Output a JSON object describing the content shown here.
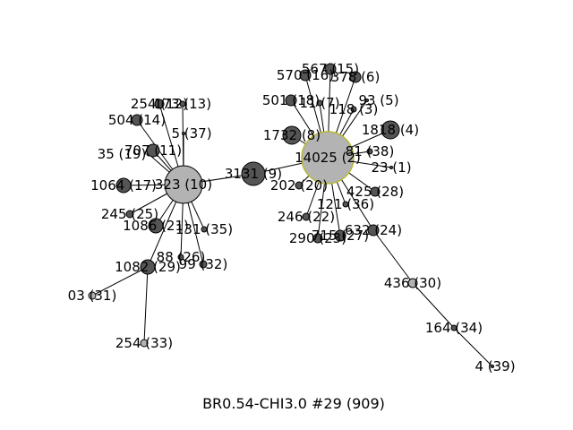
{
  "caption": "BR0.54-CHI3.0 #29 (909)",
  "colors": {
    "dark": "#555555",
    "light": "#b3b3b3",
    "hub_outline": "#b8b832",
    "edge": "#000000"
  },
  "nodes": [
    {
      "id": "n9",
      "label": "3131 (9)"
    },
    {
      "id": "n10",
      "label": "323 (10)"
    },
    {
      "id": "n2",
      "label": "14025 (2)"
    },
    {
      "id": "n12",
      "label": "254 (12)"
    },
    {
      "id": "n13",
      "label": "173 (13)"
    },
    {
      "id": "n14",
      "label": "504 (14)"
    },
    {
      "id": "n37",
      "label": "5 (37)"
    },
    {
      "id": "n19",
      "label": "35 (19)"
    },
    {
      "id": "n11",
      "label": "707 (11)"
    },
    {
      "id": "n17",
      "label": "1064 (17)"
    },
    {
      "id": "n25",
      "label": "245 (25)"
    },
    {
      "id": "n21",
      "label": "1086 (21)"
    },
    {
      "id": "n35",
      "label": "131 (35)"
    },
    {
      "id": "n26",
      "label": "88 (26)"
    },
    {
      "id": "n32",
      "label": "99 (32)"
    },
    {
      "id": "n29",
      "label": "1082 (29)"
    },
    {
      "id": "n31",
      "label": "03 (31)"
    },
    {
      "id": "n33",
      "label": "254 (33)"
    },
    {
      "id": "n15",
      "label": "567 (15)"
    },
    {
      "id": "n16",
      "label": "570 (16)"
    },
    {
      "id": "n6",
      "label": "378 (6)"
    },
    {
      "id": "n18",
      "label": "501 (18)"
    },
    {
      "id": "n7",
      "label": "11 (7)"
    },
    {
      "id": "n5",
      "label": "93 (5)"
    },
    {
      "id": "n3",
      "label": "118 (3)"
    },
    {
      "id": "n8",
      "label": "1732 (8)"
    },
    {
      "id": "n4",
      "label": "1818 (4)"
    },
    {
      "id": "n38",
      "label": "81 (38)"
    },
    {
      "id": "n1",
      "label": "23 (1)"
    },
    {
      "id": "n20",
      "label": "202 (20)"
    },
    {
      "id": "n28",
      "label": "425 (28)"
    },
    {
      "id": "n36",
      "label": "121 (36)"
    },
    {
      "id": "n22",
      "label": "246 (22)"
    },
    {
      "id": "n24",
      "label": "632 (24)"
    },
    {
      "id": "n23",
      "label": "290 (23)"
    },
    {
      "id": "n27",
      "label": "715 (27)"
    },
    {
      "id": "n30",
      "label": "436 (30)"
    },
    {
      "id": "n34",
      "label": "164 (34)"
    },
    {
      "id": "n39",
      "label": "4 (39)"
    }
  ],
  "edges": [
    [
      "n9",
      "n10"
    ],
    [
      "n9",
      "n2"
    ],
    [
      "n10",
      "n12"
    ],
    [
      "n10",
      "n13"
    ],
    [
      "n10",
      "n14"
    ],
    [
      "n10",
      "n37"
    ],
    [
      "n10",
      "n19"
    ],
    [
      "n10",
      "n11"
    ],
    [
      "n10",
      "n17"
    ],
    [
      "n10",
      "n25"
    ],
    [
      "n10",
      "n21"
    ],
    [
      "n10",
      "n35"
    ],
    [
      "n10",
      "n26"
    ],
    [
      "n10",
      "n32"
    ],
    [
      "n10",
      "n29"
    ],
    [
      "n29",
      "n31"
    ],
    [
      "n29",
      "n33"
    ],
    [
      "n2",
      "n15"
    ],
    [
      "n2",
      "n16"
    ],
    [
      "n2",
      "n6"
    ],
    [
      "n2",
      "n18"
    ],
    [
      "n2",
      "n7"
    ],
    [
      "n2",
      "n5"
    ],
    [
      "n2",
      "n3"
    ],
    [
      "n2",
      "n8"
    ],
    [
      "n2",
      "n4"
    ],
    [
      "n2",
      "n38"
    ],
    [
      "n2",
      "n1"
    ],
    [
      "n2",
      "n20"
    ],
    [
      "n2",
      "n28"
    ],
    [
      "n2",
      "n36"
    ],
    [
      "n2",
      "n22"
    ],
    [
      "n2",
      "n24"
    ],
    [
      "n2",
      "n23"
    ],
    [
      "n2",
      "n27"
    ],
    [
      "n24",
      "n30"
    ],
    [
      "n30",
      "n34"
    ],
    [
      "n34",
      "n39"
    ]
  ]
}
